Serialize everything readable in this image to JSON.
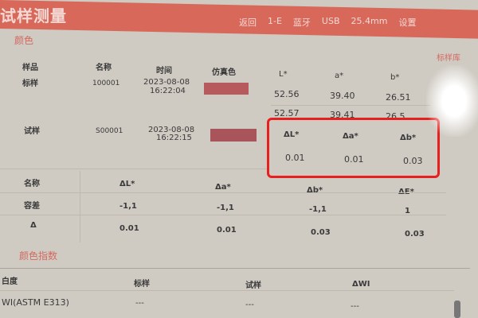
{
  "header": {
    "title": "试样测量",
    "status_items": [
      "返回",
      "1-E",
      "蓝牙",
      "USB",
      "25.4mm",
      "设置"
    ]
  },
  "color_section": {
    "label": "颜色",
    "aux_label": "标样库",
    "columns": [
      "样品",
      "名称",
      "时间",
      "仿真色",
      "L*",
      "a*",
      "b*"
    ],
    "standard": {
      "label": "标样",
      "name": "100001",
      "date": "2023-08-08",
      "time": "16:22:04",
      "swatch": "#b65a5e",
      "L": "52.56",
      "a": "39.40",
      "b": "26.51"
    },
    "sample": {
      "label": "试样",
      "name": "S00001",
      "date": "2023-08-08",
      "time": "16:22:15",
      "swatch": "#b0585c",
      "L": "52.57",
      "a": "39.41",
      "b": "26.5"
    },
    "delta_headers": [
      "ΔL*",
      "Δa*",
      "Δb*"
    ],
    "delta_values": [
      "0.01",
      "0.01",
      "0.03"
    ]
  },
  "tolerance_table": {
    "headers": [
      "名称",
      "ΔL*",
      "Δa*",
      "Δb*",
      "ΔE*"
    ],
    "rows": [
      [
        "容差",
        "-1,1",
        "-1,1",
        "-1,1",
        "1"
      ],
      [
        "Δ",
        "0.01",
        "0.01",
        "0.03",
        "0.03"
      ]
    ]
  },
  "index_section": {
    "label": "颜色指数",
    "headers": [
      "白度",
      "标样",
      "试样",
      "ΔWI"
    ],
    "rows": [
      [
        "WI(ASTM E313)",
        "---",
        "---",
        "---"
      ]
    ]
  },
  "highlight_color": "#e81f1f"
}
